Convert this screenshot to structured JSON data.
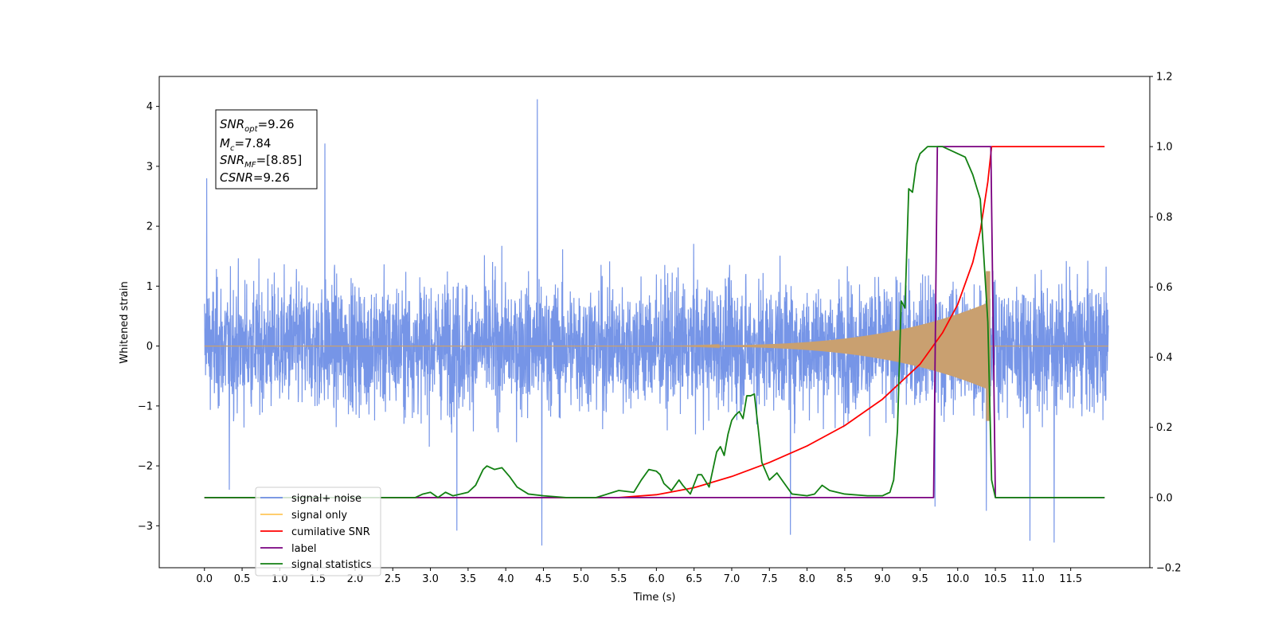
{
  "chart_data": {
    "type": "line",
    "xlabel": "Time (s)",
    "ylabel": "Whitened strain",
    "xlim": [
      -0.6,
      12.55
    ],
    "ylim": [
      -3.7,
      4.5
    ],
    "y2lim": [
      -0.2,
      1.2
    ],
    "x_ticks": [
      "0.0",
      "0.5",
      "1.0",
      "1.5",
      "2.0",
      "2.5",
      "3.0",
      "3.5",
      "4.0",
      "4.5",
      "5.0",
      "5.5",
      "6.0",
      "6.5",
      "7.0",
      "7.5",
      "8.0",
      "8.5",
      "9.0",
      "9.5",
      "10.0",
      "10.5",
      "11.0",
      "11.5"
    ],
    "y_ticks": [
      "4",
      "3",
      "2",
      "1",
      "0",
      "−1",
      "−2",
      "−3"
    ],
    "y2_ticks": [
      "1.2",
      "1.0",
      "0.8",
      "0.6",
      "0.4",
      "0.2",
      "0.0",
      "−0.2"
    ],
    "legend_placement": "lower-left",
    "annotation": {
      "snr_opt": {
        "base": "SNR",
        "sub": "opt",
        "value": "=9.26"
      },
      "mc": {
        "base": "M",
        "sub": "c",
        "value": "=7.84"
      },
      "snr_mf": {
        "base": "SNR",
        "sub": "MF",
        "value": "=[8.85]"
      },
      "csnr": {
        "base": "CSNR",
        "value": "=9.26"
      }
    },
    "series": [
      {
        "name": "signal+ noise",
        "color": "#6f8fe6",
        "axis": "left",
        "description_range": [
          0.0,
          12.0
        ],
        "envelope_typical": 1.6,
        "spikes": [
          [
            0.03,
            2.8
          ],
          [
            0.33,
            -2.4
          ],
          [
            1.6,
            3.38
          ],
          [
            4.42,
            4.12
          ],
          [
            4.48,
            -3.33
          ],
          [
            3.35,
            -3.08
          ],
          [
            7.78,
            -3.15
          ],
          [
            10.96,
            -3.25
          ],
          [
            11.28,
            -3.28
          ],
          [
            9.7,
            -2.68
          ],
          [
            10.38,
            -2.75
          ]
        ]
      },
      {
        "name": "signal only",
        "color": "#ffc65a",
        "axis": "left",
        "chirp_start": 6.2,
        "chirp_end": 10.43,
        "peak_amp": 1.25
      },
      {
        "name": "cumilative SNR",
        "color": "#ff0000",
        "axis": "right",
        "x": [
          0.0,
          5.0,
          5.5,
          6.0,
          6.5,
          7.0,
          7.5,
          8.0,
          8.5,
          9.0,
          9.5,
          9.8,
          10.0,
          10.2,
          10.3,
          10.4,
          10.45,
          11.95
        ],
        "y": [
          0.0,
          0.0,
          0.0,
          0.008,
          0.028,
          0.06,
          0.1,
          0.147,
          0.205,
          0.28,
          0.38,
          0.47,
          0.55,
          0.67,
          0.76,
          0.9,
          1.0,
          1.0
        ]
      },
      {
        "name": "label",
        "color": "#7a0080",
        "axis": "right",
        "x": [
          0.0,
          9.68,
          9.73,
          10.44,
          10.5,
          11.95
        ],
        "y": [
          0.0,
          0.0,
          1.0,
          1.0,
          0.0,
          0.0
        ]
      },
      {
        "name": "signal statistics",
        "color": "#128012",
        "axis": "right",
        "x": [
          0.0,
          2.8,
          2.9,
          3.0,
          3.1,
          3.2,
          3.3,
          3.4,
          3.5,
          3.6,
          3.7,
          3.75,
          3.85,
          3.95,
          4.05,
          4.15,
          4.3,
          4.5,
          4.8,
          5.2,
          5.5,
          5.7,
          5.8,
          5.9,
          6.0,
          6.05,
          6.1,
          6.2,
          6.3,
          6.35,
          6.45,
          6.55,
          6.6,
          6.7,
          6.8,
          6.85,
          6.9,
          6.95,
          7.0,
          7.05,
          7.1,
          7.15,
          7.2,
          7.25,
          7.3,
          7.35,
          7.4,
          7.5,
          7.6,
          7.7,
          7.8,
          8.0,
          8.1,
          8.2,
          8.3,
          8.5,
          8.8,
          9.0,
          9.1,
          9.15,
          9.2,
          9.25,
          9.3,
          9.35,
          9.4,
          9.45,
          9.5,
          9.55,
          9.6,
          9.7,
          9.8,
          9.9,
          10.0,
          10.1,
          10.2,
          10.3,
          10.4,
          10.45,
          10.5,
          10.55,
          10.6,
          10.7,
          11.95
        ],
        "y": [
          0.0,
          0.0,
          0.01,
          0.015,
          0.0,
          0.015,
          0.005,
          0.01,
          0.015,
          0.035,
          0.08,
          0.09,
          0.08,
          0.085,
          0.06,
          0.03,
          0.01,
          0.005,
          0.0,
          0.0,
          0.02,
          0.015,
          0.05,
          0.08,
          0.075,
          0.065,
          0.04,
          0.02,
          0.05,
          0.035,
          0.01,
          0.065,
          0.065,
          0.03,
          0.13,
          0.145,
          0.12,
          0.18,
          0.22,
          0.235,
          0.245,
          0.225,
          0.29,
          0.29,
          0.295,
          0.2,
          0.1,
          0.05,
          0.07,
          0.04,
          0.01,
          0.005,
          0.01,
          0.035,
          0.02,
          0.01,
          0.005,
          0.005,
          0.015,
          0.05,
          0.19,
          0.56,
          0.54,
          0.88,
          0.87,
          0.95,
          0.98,
          0.99,
          1.0,
          1.0,
          1.0,
          0.99,
          0.98,
          0.97,
          0.92,
          0.85,
          0.5,
          0.05,
          0.0,
          0.0,
          0.0,
          0.0,
          0.0
        ]
      }
    ]
  }
}
